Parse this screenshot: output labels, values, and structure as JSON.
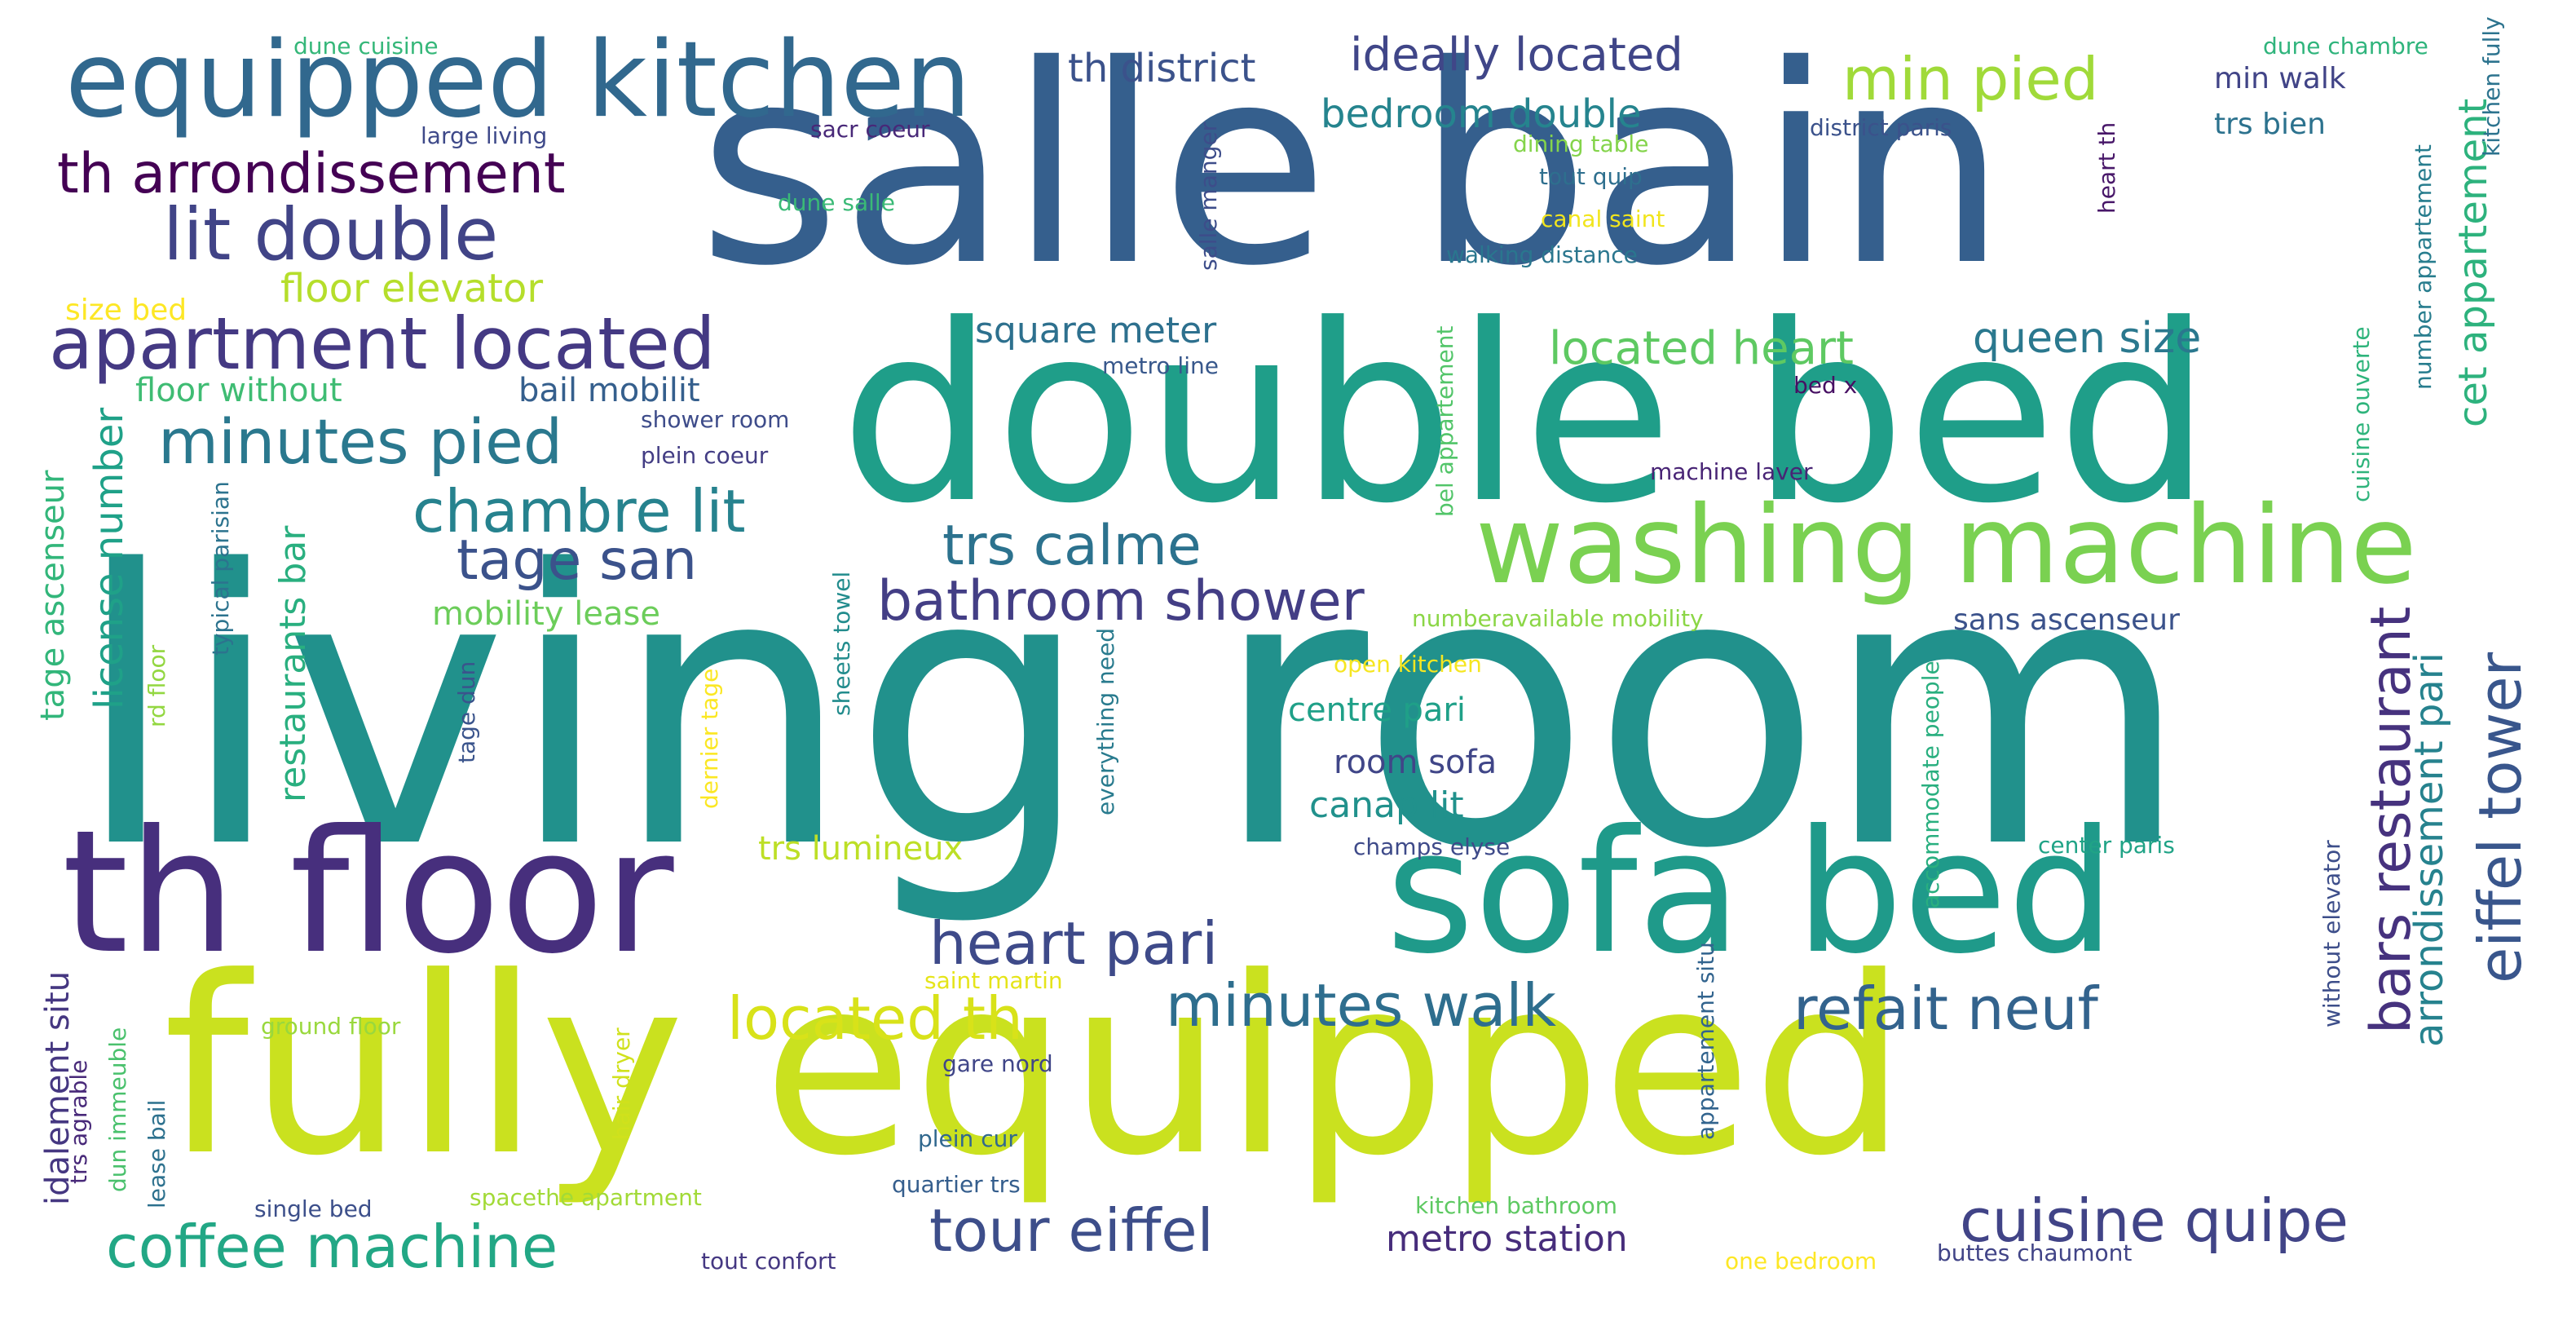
{
  "title": "",
  "words": [
    {
      "text": "living room",
      "color": "#21918c"
    },
    {
      "text": "salle bain",
      "color": "#355f8d"
    },
    {
      "text": "double bed",
      "color": "#1f9e89"
    },
    {
      "text": "fully equipped",
      "color": "#cae11f"
    },
    {
      "text": "th floor",
      "color": "#472f7d"
    },
    {
      "text": "sofa bed",
      "color": "#1f9a8a"
    },
    {
      "text": "equipped kitchen",
      "color": "#31688e"
    },
    {
      "text": "washing machine",
      "color": "#7ad151"
    },
    {
      "text": "apartment located",
      "color": "#443983"
    },
    {
      "text": "lit double",
      "color": "#414487"
    },
    {
      "text": "th arrondissement",
      "color": "#440154"
    },
    {
      "text": "min pied",
      "color": "#a0da39"
    },
    {
      "text": "minutes pied",
      "color": "#2a788e"
    },
    {
      "text": "chambre lit",
      "color": "#26828e"
    },
    {
      "text": "tage san",
      "color": "#3b528b"
    },
    {
      "text": "trs calme",
      "color": "#2c728e"
    },
    {
      "text": "bathroom shower",
      "color": "#433e85"
    },
    {
      "text": "heart pari",
      "color": "#3e4a89"
    },
    {
      "text": "located th",
      "color": "#d8e219"
    },
    {
      "text": "minutes walk",
      "color": "#2e6e8e"
    },
    {
      "text": "refait neuf",
      "color": "#33638d"
    },
    {
      "text": "tour eiffel",
      "color": "#3d4e8a"
    },
    {
      "text": "coffee machine",
      "color": "#22a785"
    },
    {
      "text": "cuisine quipe",
      "color": "#414487"
    },
    {
      "text": "eiffel tower",
      "color": "#39568c"
    },
    {
      "text": "bars restaurant",
      "color": "#46327e"
    },
    {
      "text": "arrondissement pari",
      "color": "#26828e"
    },
    {
      "text": "located heart",
      "color": "#5ec962"
    },
    {
      "text": "queen size",
      "color": "#2a788e"
    },
    {
      "text": "cet appartement",
      "color": "#2db27d"
    },
    {
      "text": "ideally located",
      "color": "#404688"
    },
    {
      "text": "th district",
      "color": "#3b528b"
    },
    {
      "text": "bedroom double",
      "color": "#25848e"
    },
    {
      "text": "floor elevator",
      "color": "#b5de2b"
    },
    {
      "text": "square meter",
      "color": "#2d708e"
    },
    {
      "text": "bail mobilit",
      "color": "#355f8d"
    },
    {
      "text": "floor without",
      "color": "#3fbc73"
    },
    {
      "text": "license number",
      "color": "#1fa188"
    },
    {
      "text": "restaurants bar",
      "color": "#29af7f"
    },
    {
      "text": "tage ascenseur",
      "color": "#32b67a"
    },
    {
      "text": "mobility lease",
      "color": "#6ccd5a"
    },
    {
      "text": "idalement situ",
      "color": "#453781"
    },
    {
      "text": "centre pari",
      "color": "#1fa088"
    },
    {
      "text": "room sofa",
      "color": "#404688"
    },
    {
      "text": "canap lit",
      "color": "#21918c"
    },
    {
      "text": "trs lumineux",
      "color": "#bddf26"
    },
    {
      "text": "sans ascenseur",
      "color": "#3b528b"
    },
    {
      "text": "min walk",
      "color": "#414487"
    },
    {
      "text": "trs bien",
      "color": "#2c728e"
    },
    {
      "text": "metro station",
      "color": "#472d7b"
    },
    {
      "text": "large living",
      "color": "#3e4989"
    },
    {
      "text": "sacr coeur",
      "color": "#482878"
    },
    {
      "text": "dune salle",
      "color": "#3aba76"
    },
    {
      "text": "size bed",
      "color": "#fde725"
    },
    {
      "text": "dune cuisine",
      "color": "#35b779"
    },
    {
      "text": "dune chambre",
      "color": "#2fb47c"
    },
    {
      "text": "district paris",
      "color": "#3b528b"
    },
    {
      "text": "dining table",
      "color": "#84d44b"
    },
    {
      "text": "tout quip",
      "color": "#2e6f8e"
    },
    {
      "text": "canal saint",
      "color": "#f1e51d"
    },
    {
      "text": "walking distance",
      "color": "#2a768e"
    },
    {
      "text": "metro line",
      "color": "#38588c"
    },
    {
      "text": "shower room",
      "color": "#3e4c8a"
    },
    {
      "text": "plein coeur",
      "color": "#433d84"
    },
    {
      "text": "machine laver",
      "color": "#482475"
    },
    {
      "text": "bed x",
      "color": "#471063"
    },
    {
      "text": "numberavailable mobility",
      "color": "#8bd646"
    },
    {
      "text": "open kitchen",
      "color": "#f6e620"
    },
    {
      "text": "champs elyse",
      "color": "#3e4a89"
    },
    {
      "text": "center paris",
      "color": "#20a386"
    },
    {
      "text": "saint martin",
      "color": "#e5e419"
    },
    {
      "text": "ground floor",
      "color": "#99d83d"
    },
    {
      "text": "gare nord",
      "color": "#404688"
    },
    {
      "text": "plein cur",
      "color": "#31688e"
    },
    {
      "text": "quartier trs",
      "color": "#355e8d"
    },
    {
      "text": "single bed",
      "color": "#3c4f8a"
    },
    {
      "text": "spacethe apartment",
      "color": "#a2da37"
    },
    {
      "text": "tout confort",
      "color": "#453882"
    },
    {
      "text": "kitchen bathroom",
      "color": "#5ec962"
    },
    {
      "text": "one bedroom",
      "color": "#fde725"
    },
    {
      "text": "buttes chaumont",
      "color": "#414487"
    },
    {
      "text": "hair dryer",
      "color": "#d0e11c"
    },
    {
      "text": "lease bail",
      "color": "#2d718e"
    },
    {
      "text": "dun immeuble",
      "color": "#4ac16d"
    },
    {
      "text": "trs agrable",
      "color": "#482979"
    },
    {
      "text": "rd floor",
      "color": "#93d741"
    },
    {
      "text": "typical parisian",
      "color": "#2c738e"
    },
    {
      "text": "tage dun",
      "color": "#3a548c"
    },
    {
      "text": "dernier tage",
      "color": "#fbe723"
    },
    {
      "text": "sheets towel",
      "color": "#228c8d"
    },
    {
      "text": "everything need",
      "color": "#297b8e"
    },
    {
      "text": "salle manger",
      "color": "#3d4d8a"
    },
    {
      "text": "bel appartement",
      "color": "#52c569"
    },
    {
      "text": "accommodate people",
      "color": "#29af7f"
    },
    {
      "text": "appartement situ",
      "color": "#32648e"
    },
    {
      "text": "without elevator",
      "color": "#3d4e8a"
    },
    {
      "text": "cuisine ouverte",
      "color": "#2fb47c"
    },
    {
      "text": "number appartement",
      "color": "#287d8e"
    },
    {
      "text": "kitchen fully",
      "color": "#2c738e"
    },
    {
      "text": "heart th",
      "color": "#481769"
    }
  ]
}
